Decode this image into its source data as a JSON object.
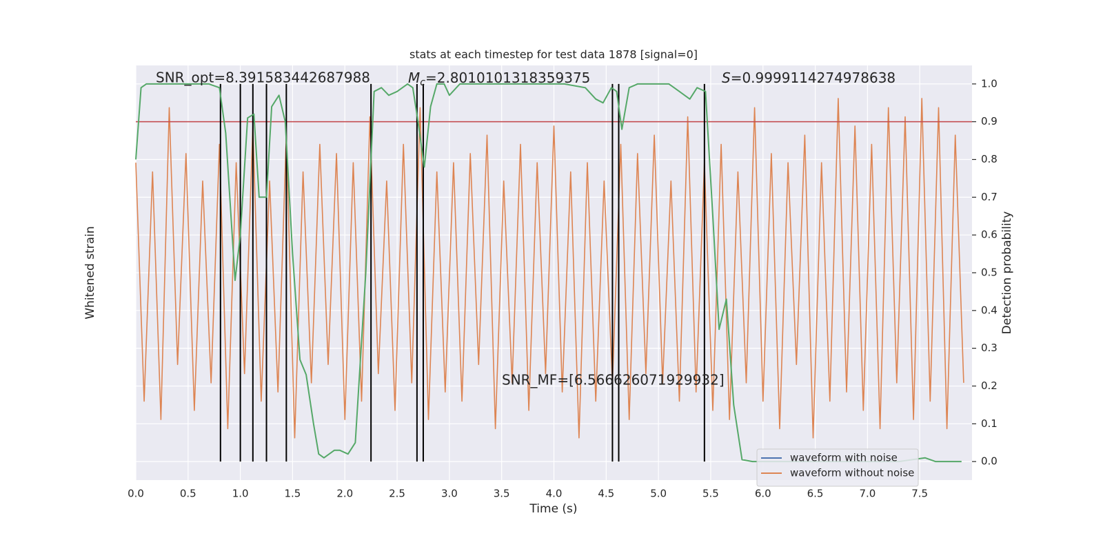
{
  "chart_data": {
    "type": "line",
    "title": "stats at each timestep for test data 1878 [signal=0]",
    "xlabel": "Time (s)",
    "ylabel": "Whitened strain",
    "y2label": "Detection probability",
    "xlim": [
      0,
      8
    ],
    "xticks": [
      {
        "value": 0,
        "label": "0.0"
      },
      0.5,
      {
        "value": 1,
        "label": "1.0"
      },
      1.5,
      {
        "value": 2,
        "label": "2.0"
      },
      2.5,
      {
        "value": 3,
        "label": "3.0"
      },
      3.5,
      {
        "value": 4,
        "label": "4.0"
      },
      4.5,
      {
        "value": 5,
        "label": "5.0"
      },
      5.5,
      {
        "value": 6,
        "label": "6.0"
      },
      6.5,
      {
        "value": 7,
        "label": "7.0"
      },
      7.5
    ],
    "ylim": [
      -1.13,
      1.13
    ],
    "y2lim": [
      -0.049,
      1.049
    ],
    "y2ticks": [
      {
        "value": 0,
        "label": "0.0"
      },
      0.1,
      0.2,
      0.3,
      0.4,
      0.5,
      0.6,
      0.7,
      0.8,
      0.9,
      {
        "value": 1,
        "label": "1.0"
      }
    ],
    "grid": true,
    "legend": "lower right",
    "series": [
      {
        "name": "waveform with noise",
        "color": "#4c72b0"
      },
      {
        "name": "waveform without noise",
        "color": "#dd8452",
        "x": [
          0,
          0.08,
          0.16,
          0.24,
          0.32,
          0.4,
          0.48,
          0.56,
          0.64,
          0.72,
          0.8,
          0.88,
          0.96,
          1.04,
          1.12,
          1.2,
          1.28,
          1.36,
          1.44,
          1.52,
          1.6,
          1.68,
          1.76,
          1.84,
          1.92,
          2,
          2.08,
          2.16,
          2.24,
          2.32,
          2.4,
          2.48,
          2.56,
          2.64,
          2.72,
          2.8,
          2.88,
          2.96,
          3.04,
          3.12,
          3.2,
          3.28,
          3.36,
          3.44,
          3.52,
          3.6,
          3.68,
          3.76,
          3.84,
          3.92,
          4,
          4.08,
          4.16,
          4.24,
          4.32,
          4.4,
          4.48,
          4.56,
          4.64,
          4.72,
          4.8,
          4.88,
          4.96,
          5.04,
          5.12,
          5.2,
          5.28,
          5.36,
          5.44,
          5.52,
          5.6,
          5.68,
          5.76,
          5.84,
          5.92,
          6,
          6.08,
          6.16,
          6.24,
          6.32,
          6.4,
          6.48,
          6.56,
          6.64,
          6.72,
          6.8,
          6.88,
          6.96,
          7.04,
          7.12,
          7.2,
          7.28,
          7.36,
          7.44,
          7.52,
          7.6,
          7.68,
          7.76,
          7.84,
          7.92
        ],
        "values": [
          0.6,
          -0.7,
          0.55,
          -0.8,
          0.9,
          -0.5,
          0.65,
          -0.75,
          0.5,
          -0.6,
          0.7,
          -0.85,
          0.6,
          -0.55,
          0.8,
          -0.7,
          0.5,
          -0.65,
          0.75,
          -0.9,
          0.55,
          -0.6,
          0.7,
          -0.5,
          0.65,
          -0.8,
          0.6,
          -0.7,
          0.85,
          -0.55,
          0.5,
          -0.75,
          0.7,
          -0.6,
          0.9,
          -0.8,
          0.55,
          -0.65,
          0.6,
          -0.7,
          0.65,
          -0.5,
          0.75,
          -0.85,
          0.5,
          -0.6,
          0.7,
          -0.75,
          0.6,
          -0.55,
          0.8,
          -0.65,
          0.55,
          -0.9,
          0.6,
          -0.7,
          0.5,
          -0.6,
          0.7,
          -0.8,
          0.65,
          -0.55,
          0.75,
          -0.6,
          0.5,
          -0.7,
          0.85,
          -0.65,
          0.6,
          -0.75,
          0.7,
          -0.8,
          0.55,
          -0.6,
          0.9,
          -0.7,
          0.65,
          -0.85,
          0.6,
          -0.5,
          0.75,
          -0.9,
          0.6,
          -0.7,
          0.95,
          -0.65,
          0.8,
          -0.75,
          0.7,
          -0.85,
          0.9,
          -0.6,
          0.85,
          -0.8,
          0.95,
          -0.7,
          0.9,
          -0.85,
          0.75,
          -0.6
        ]
      },
      {
        "color": "#55a868",
        "axis": "y2",
        "x": [
          0,
          0.05,
          0.1,
          0.3,
          0.5,
          0.7,
          0.8,
          0.86,
          0.95,
          1.0,
          1.07,
          1.13,
          1.18,
          1.25,
          1.3,
          1.37,
          1.43,
          1.5,
          1.57,
          1.63,
          1.7,
          1.75,
          1.8,
          1.9,
          1.95,
          2.03,
          2.1,
          2.2,
          2.28,
          2.35,
          2.42,
          2.5,
          2.6,
          2.65,
          2.7,
          2.76,
          2.82,
          2.88,
          2.95,
          3.0,
          3.1,
          3.3,
          3.6,
          3.8,
          4.1,
          4.3,
          4.4,
          4.47,
          4.55,
          4.6,
          4.65,
          4.72,
          4.8,
          4.95,
          5.1,
          5.2,
          5.3,
          5.37,
          5.45,
          5.52,
          5.58,
          5.65,
          5.72,
          5.8,
          5.9,
          6.2,
          6.5,
          7.0,
          7.3,
          7.55,
          7.65,
          7.9
        ],
        "values": [
          0.8,
          0.99,
          1.0,
          1.0,
          1.0,
          1.0,
          0.99,
          0.87,
          0.48,
          0.6,
          0.91,
          0.92,
          0.7,
          0.7,
          0.94,
          0.97,
          0.9,
          0.55,
          0.27,
          0.23,
          0.1,
          0.02,
          0.01,
          0.03,
          0.03,
          0.02,
          0.05,
          0.5,
          0.98,
          0.99,
          0.97,
          0.98,
          1.0,
          0.99,
          0.9,
          0.78,
          0.94,
          1.0,
          1.0,
          0.97,
          1.0,
          1.0,
          1.0,
          1.0,
          1.0,
          0.99,
          0.96,
          0.95,
          0.99,
          0.98,
          0.88,
          0.99,
          1.0,
          1.0,
          1.0,
          0.98,
          0.96,
          0.99,
          0.98,
          0.65,
          0.35,
          0.43,
          0.15,
          0.005,
          0.0,
          0.0,
          0.0,
          0.0,
          0.0,
          0.01,
          0.0,
          0.0
        ]
      }
    ],
    "hlines": [
      {
        "value": 0.9,
        "color": "#c44e52",
        "axis": "y2"
      }
    ],
    "vlines": {
      "color": "#000000",
      "x": [
        0.81,
        1.0,
        1.12,
        1.25,
        1.44,
        2.25,
        2.69,
        2.75,
        4.56,
        4.62,
        5.44
      ]
    },
    "annotations": {
      "snr_opt": {
        "text": "SNR_opt=8.391583442687988"
      },
      "mc": {
        "symbol": "M",
        "subscript": "c",
        "text": "=2.8010101318359375"
      },
      "s": {
        "symbol": "S",
        "text": "=0.9999114274978638"
      },
      "snr_mf": {
        "text": "SNR_MF=[6.566626071929932]"
      }
    }
  }
}
